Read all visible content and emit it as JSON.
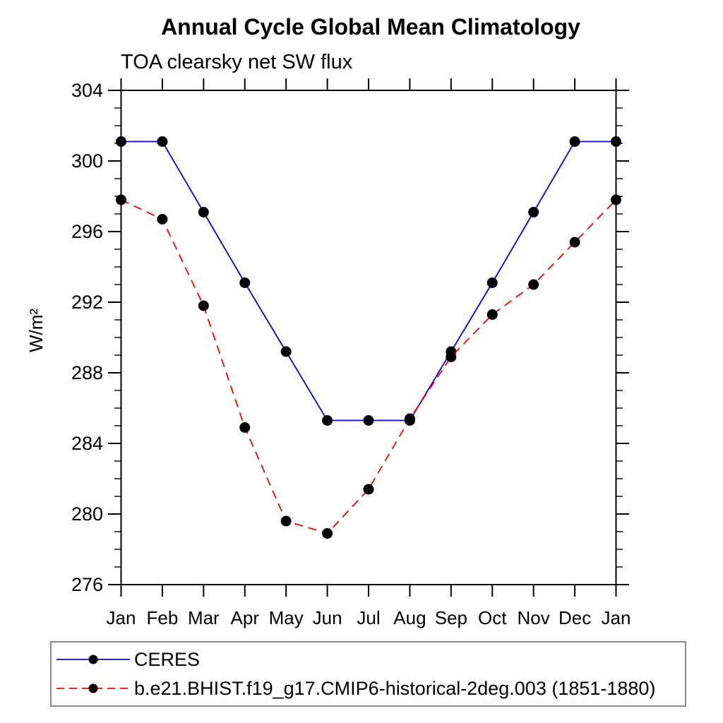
{
  "chart_data": {
    "type": "line",
    "title": "Annual Cycle Global Mean Climatology",
    "subtitle": "TOA clearsky net SW flux",
    "ylabel": "W/m²",
    "xlabel": "",
    "categories": [
      "Jan",
      "Feb",
      "Mar",
      "Apr",
      "May",
      "Jun",
      "Jul",
      "Aug",
      "Sep",
      "Oct",
      "Nov",
      "Dec",
      "Jan"
    ],
    "ylim": [
      276,
      304
    ],
    "y_major_ticks": [
      276,
      280,
      284,
      288,
      292,
      296,
      300,
      304
    ],
    "y_minor_step": 1,
    "grid": false,
    "legend_position": "bottom-left-box",
    "frame_color": "#000000",
    "legend_border_color": "#888888",
    "series": [
      {
        "name": "CERES",
        "color": "#0000ff",
        "style": "solid",
        "marker": "circle",
        "marker_color": "#000000",
        "values": [
          301.1,
          301.1,
          297.1,
          293.1,
          289.2,
          285.3,
          285.3,
          285.3,
          289.2,
          293.1,
          297.1,
          301.1,
          301.1
        ]
      },
      {
        "name": "b.e21.BHIST.f19_g17.CMIP6-historical-2deg.003 (1851-1880)",
        "color": "#ff0000",
        "style": "dashed",
        "marker": "circle",
        "marker_color": "#000000",
        "values": [
          297.8,
          296.7,
          291.8,
          284.9,
          279.6,
          278.9,
          281.4,
          285.4,
          288.9,
          291.3,
          293.0,
          295.4,
          297.8
        ]
      }
    ]
  }
}
